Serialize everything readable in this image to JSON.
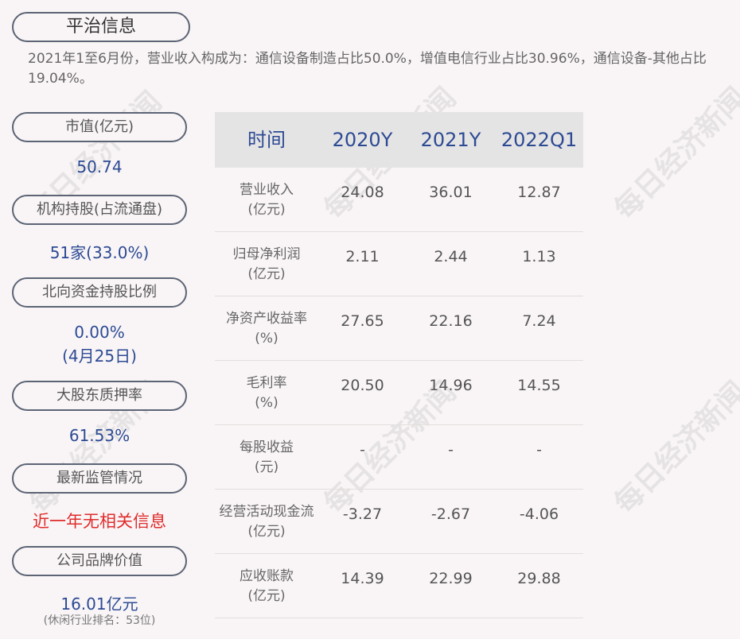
{
  "title": "平治信息",
  "description": "2021年1至6月份，营业收入构成为：通信设备制造占比50.0%，增值电信行业占比30.96%，通信设备-其他占比19.04%。",
  "left": {
    "market_cap": {
      "label": "市值(亿元)",
      "value": "50.74"
    },
    "institutions": {
      "label": "机构持股(占流通盘)",
      "value": "51家(33.0%)"
    },
    "northbound": {
      "label": "北向资金持股比例",
      "value": "0.00%",
      "date": "(4月25日)"
    },
    "pledge": {
      "label": "大股东质押率",
      "value": "61.53%"
    },
    "regulation": {
      "label": "最新监管情况",
      "value": "近一年无相关信息"
    },
    "brand": {
      "label": "公司品牌价值",
      "value": "16.01亿元",
      "note": "(休闲行业排名：53位)"
    }
  },
  "table": {
    "headers": [
      "时间",
      "2020Y",
      "2021Y",
      "2022Q1"
    ],
    "rows": [
      {
        "l1": "营业收入",
        "l2": "(亿元)",
        "v": [
          "24.08",
          "36.01",
          "12.87"
        ]
      },
      {
        "l1": "归母净利润",
        "l2": "(亿元)",
        "v": [
          "2.11",
          "2.44",
          "1.13"
        ]
      },
      {
        "l1": "净资产收益率",
        "l2": "(%)",
        "v": [
          "27.65",
          "22.16",
          "7.24"
        ]
      },
      {
        "l1": "毛利率",
        "l2": "(%)",
        "v": [
          "20.50",
          "14.96",
          "14.55"
        ]
      },
      {
        "l1": "每股收益",
        "l2": "(元)",
        "v": [
          "-",
          "-",
          "-"
        ]
      },
      {
        "l1": "经营活动现金流",
        "l2": "(亿元)",
        "v": [
          "-3.27",
          "-2.67",
          "-4.06"
        ]
      },
      {
        "l1": "应收账款",
        "l2": "(亿元)",
        "v": [
          "14.39",
          "22.99",
          "29.88"
        ]
      }
    ]
  },
  "watermark": "每日经济新闻",
  "colors": {
    "accent": "#2c4a94",
    "alert": "#e02b2b",
    "border": "#5c6475"
  }
}
